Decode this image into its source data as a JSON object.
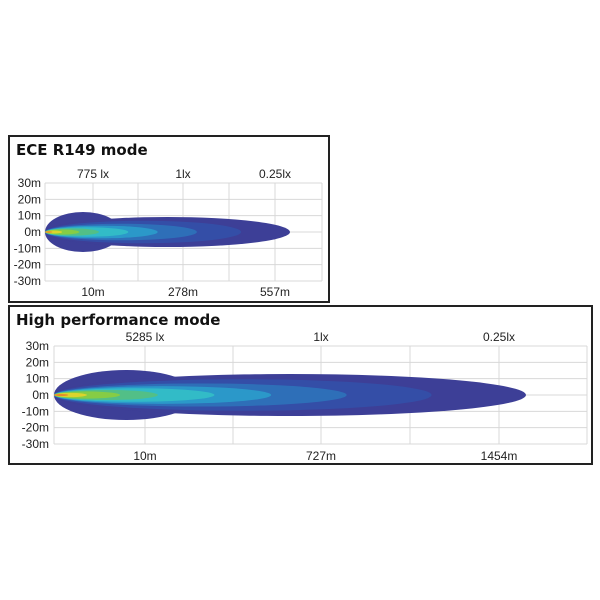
{
  "chart_data": [
    {
      "type": "beam-pattern",
      "title": "ECE R149 mode",
      "y_ticks": [
        "30m",
        "20m",
        "10m",
        "0m",
        "-10m",
        "-20m",
        "-30m"
      ],
      "lux_labels": [
        "775 lx",
        "1lx",
        "0.25lx"
      ],
      "distance_labels": [
        "10m",
        "278m",
        "557m"
      ],
      "grid": true
    },
    {
      "type": "beam-pattern",
      "title": "High performance mode",
      "y_ticks": [
        "30m",
        "20m",
        "10m",
        "0m",
        "-10m",
        "-20m",
        "-30m"
      ],
      "lux_labels": [
        "5285 lx",
        "1lx",
        "0.25lx"
      ],
      "distance_labels": [
        "10m",
        "727m",
        "1454m"
      ],
      "grid": true
    }
  ],
  "colors": {
    "beam_levels": [
      "#3d3f97",
      "#3350a8",
      "#2d73ba",
      "#2b9ccb",
      "#33bfc6",
      "#55c080",
      "#8ccd3e",
      "#e3d52a",
      "#e7832a"
    ],
    "grid": "#d8d8d8",
    "frame": "#222222"
  }
}
